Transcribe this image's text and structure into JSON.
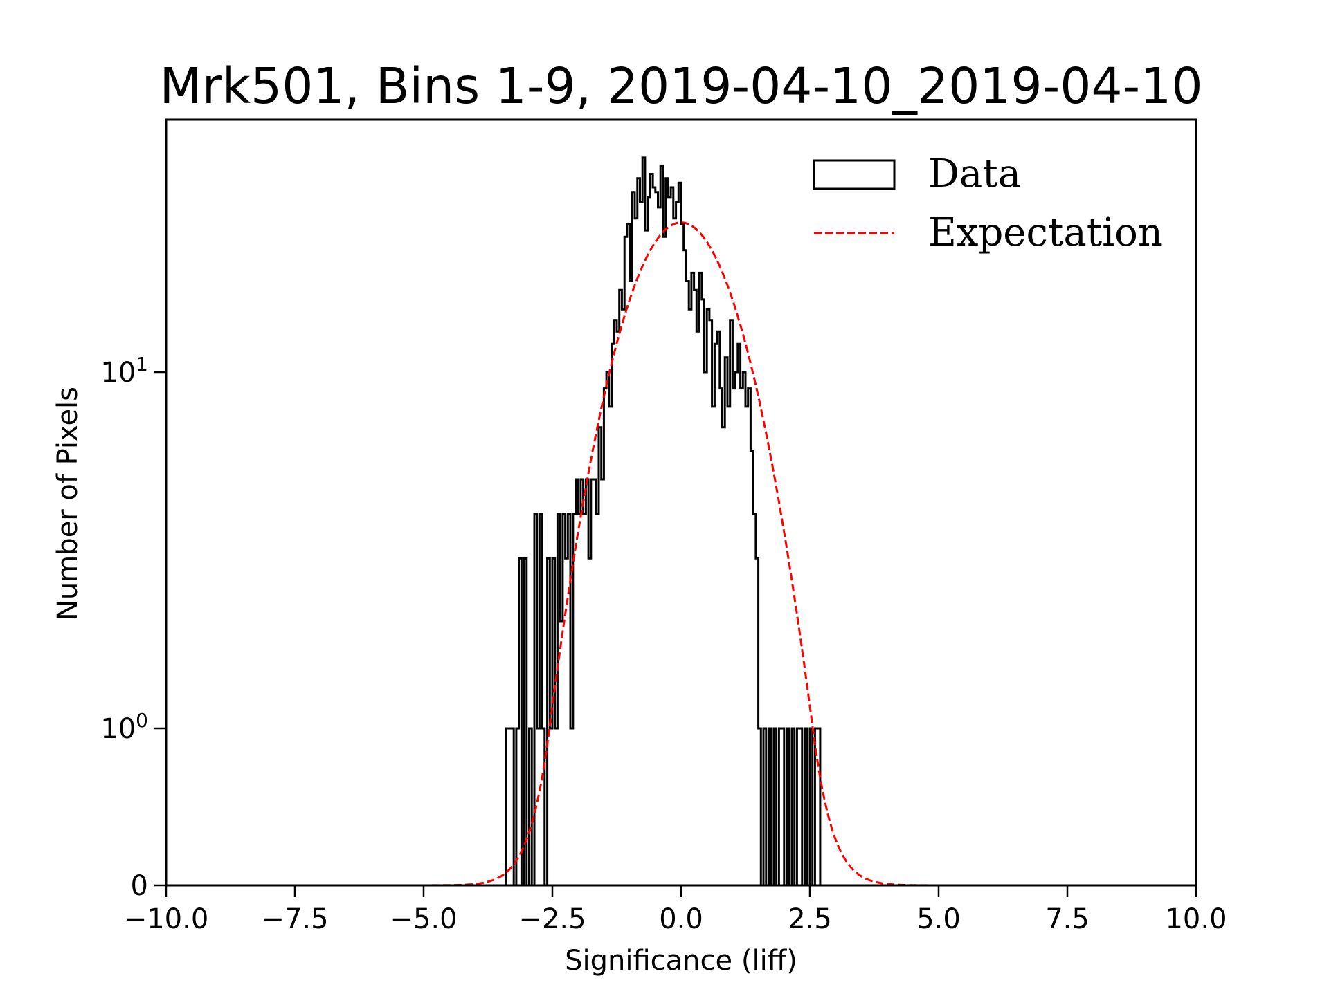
{
  "chart_data": {
    "type": "histogram",
    "title": "Mrk501, Bins 1-9, 2019-04-10_2019-04-10",
    "xlabel": "Significance (liff)",
    "ylabel": "Number of Pixels",
    "xlim": [
      -10,
      10
    ],
    "ylim": [
      0,
      51
    ],
    "yscale": "symlog",
    "y_linthresh": 1,
    "grid": false,
    "legend_position": "top-right",
    "x_ticks": [
      -10,
      -7.5,
      -5,
      -2.5,
      0,
      2.5,
      5,
      7.5,
      10
    ],
    "x_tick_labels": [
      "−10.0",
      "−7.5",
      "−5.0",
      "−2.5",
      "0.0",
      "2.5",
      "5.0",
      "7.5",
      "10.0"
    ],
    "y_ticks": [
      0,
      1,
      10
    ],
    "y_tick_labels": [
      {
        "base": "0",
        "exp": ""
      },
      {
        "base": "10",
        "exp": "0"
      },
      {
        "base": "10",
        "exp": "1"
      }
    ],
    "series": [
      {
        "name": "Data",
        "type": "step-histogram",
        "color": "#000000",
        "bin_start": -3.4,
        "bin_width": 0.05,
        "counts": [
          1,
          1,
          1,
          0,
          1,
          3,
          0,
          3,
          0,
          1,
          0,
          4,
          1,
          4,
          1,
          0,
          3,
          1,
          3,
          1,
          4,
          2,
          4,
          3,
          4,
          1,
          4,
          5,
          4,
          5,
          4,
          5,
          3,
          5,
          5,
          4,
          7,
          5,
          9,
          10,
          8,
          12,
          14,
          13,
          17,
          15,
          24,
          26,
          18,
          32,
          27,
          35,
          30,
          40,
          25,
          31,
          36,
          33,
          32,
          29,
          38,
          24,
          35,
          31,
          33,
          27,
          30,
          34,
          26,
          22,
          18,
          15,
          19,
          17,
          13,
          19,
          16,
          10,
          15,
          14,
          8,
          12,
          13,
          9,
          7,
          11,
          8,
          14,
          9,
          10,
          12,
          9,
          10,
          8,
          9,
          6,
          4,
          3,
          1,
          0,
          1,
          0,
          1,
          0,
          1,
          0,
          1,
          1,
          0,
          1,
          0,
          1,
          0,
          1,
          1,
          0,
          1,
          0,
          1,
          0,
          1,
          1
        ]
      },
      {
        "name": "Expectation",
        "type": "gaussian",
        "color": "#ff0000",
        "dash": "dashed",
        "amplitude": 26.3,
        "mean": 0.0,
        "sigma": 1.0
      }
    ],
    "legend": [
      {
        "label": "Data",
        "marker": "open-rectangle"
      },
      {
        "label": "Expectation",
        "marker": "red-dashed-line"
      }
    ]
  }
}
